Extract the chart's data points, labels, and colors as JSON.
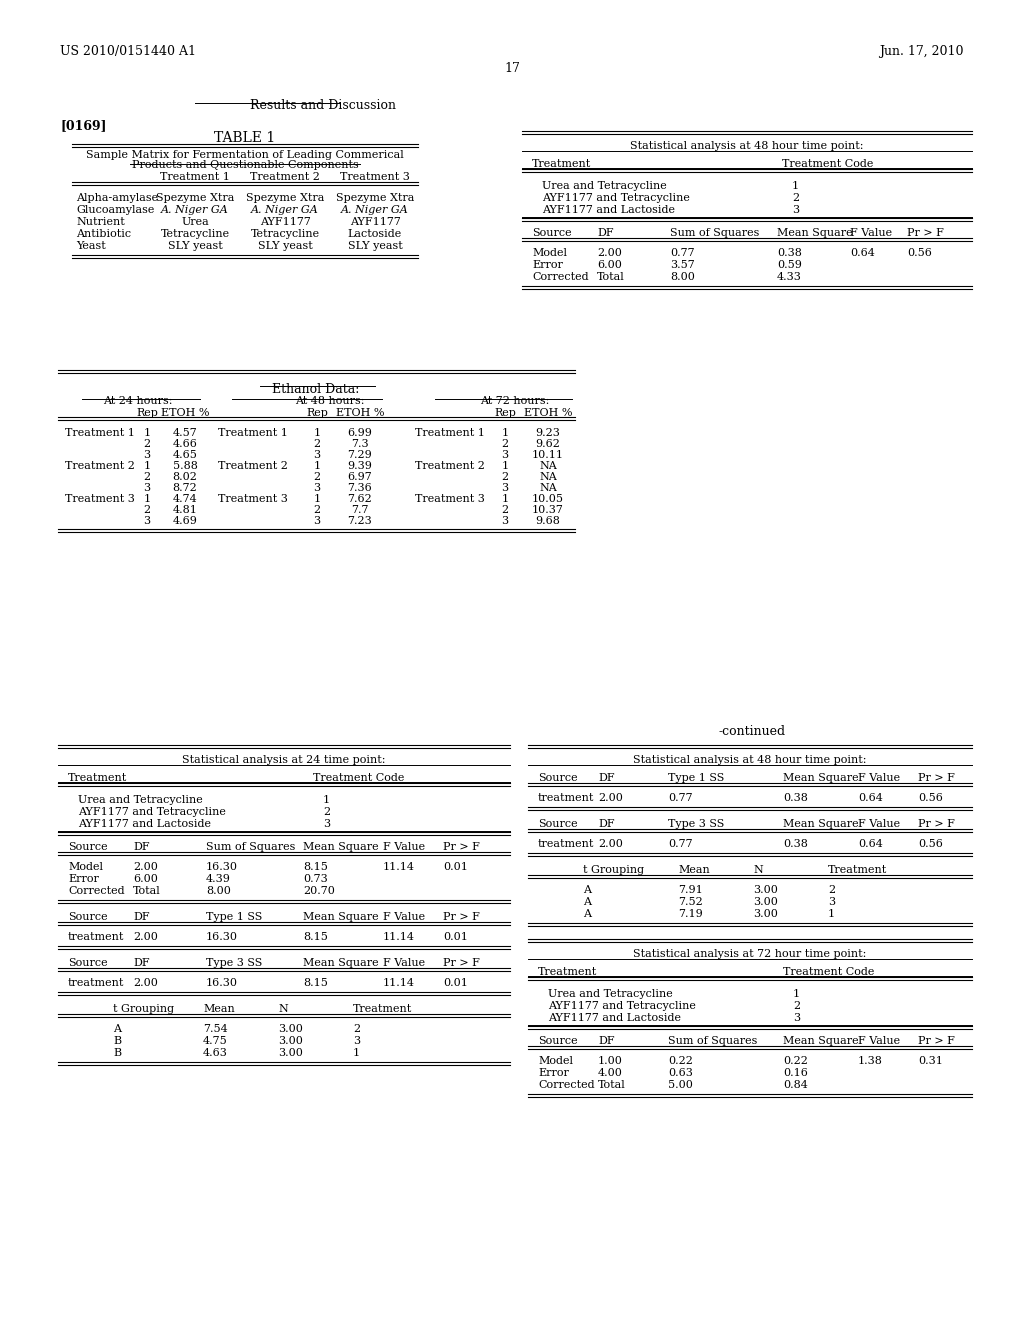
{
  "bg_color": "#ffffff",
  "header_left": "US 2010/0151440 A1",
  "header_right": "Jun. 17, 2010",
  "page_num": "17",
  "section_title": "Results and Discussion",
  "paragraph_tag": "[0169]",
  "table1_title": "TABLE 1",
  "table1_rows": [
    [
      "Alpha-amylase",
      "Spezyme Xtra",
      "Spezyme Xtra",
      "Spezyme Xtra"
    ],
    [
      "Glucoamylase",
      "A. Niger GA",
      "A. Niger GA",
      "A. Niger GA"
    ],
    [
      "Nutrient",
      "Urea",
      "AYF1177",
      "AYF1177"
    ],
    [
      "Antibiotic",
      "Tetracycline",
      "Tetracycline",
      "Lactoside"
    ],
    [
      "Yeast",
      "SLY yeast",
      "SLY yeast",
      "SLY yeast"
    ]
  ],
  "stat48_title": "Statistical analysis at 48 hour time point:",
  "stat48_treatments": [
    [
      "Urea and Tetracycline",
      "1"
    ],
    [
      "AYF1177 and Tetracycline",
      "2"
    ],
    [
      "AYF1177 and Lactoside",
      "3"
    ]
  ],
  "stat48_anova_rows": [
    [
      "Model",
      "2.00",
      "0.77",
      "0.38",
      "0.64",
      "0.56"
    ],
    [
      "Error",
      "6.00",
      "3.57",
      "0.59",
      "",
      ""
    ],
    [
      "Corrected",
      "Total",
      "8.00",
      "4.33",
      "",
      ""
    ]
  ],
  "ethanol_data_24h": [
    [
      "Treatment 1",
      "1",
      "4.57"
    ],
    [
      "",
      "2",
      "4.66"
    ],
    [
      "",
      "3",
      "4.65"
    ],
    [
      "Treatment 2",
      "1",
      "5.88"
    ],
    [
      "",
      "2",
      "8.02"
    ],
    [
      "",
      "3",
      "8.72"
    ],
    [
      "Treatment 3",
      "1",
      "4.74"
    ],
    [
      "",
      "2",
      "4.81"
    ],
    [
      "",
      "3",
      "4.69"
    ]
  ],
  "ethanol_data_48h": [
    [
      "Treatment 1",
      "1",
      "6.99"
    ],
    [
      "",
      "2",
      "7.3"
    ],
    [
      "",
      "3",
      "7.29"
    ],
    [
      "Treatment 2",
      "1",
      "9.39"
    ],
    [
      "",
      "2",
      "6.97"
    ],
    [
      "",
      "3",
      "7.36"
    ],
    [
      "Treatment 3",
      "1",
      "7.62"
    ],
    [
      "",
      "2",
      "7.7"
    ],
    [
      "",
      "3",
      "7.23"
    ]
  ],
  "ethanol_data_72h": [
    [
      "Treatment 1",
      "1",
      "9.23"
    ],
    [
      "",
      "2",
      "9.62"
    ],
    [
      "",
      "3",
      "10.11"
    ],
    [
      "Treatment 2",
      "1",
      "NA"
    ],
    [
      "",
      "2",
      "NA"
    ],
    [
      "",
      "3",
      "NA"
    ],
    [
      "Treatment 3",
      "1",
      "10.05"
    ],
    [
      "",
      "2",
      "10.37"
    ],
    [
      "",
      "3",
      "9.68"
    ]
  ],
  "stat24_title": "Statistical analysis at 24 time point:",
  "stat24_treatments": [
    [
      "Urea and Tetracycline",
      "1"
    ],
    [
      "AYF1177 and Tetracycline",
      "2"
    ],
    [
      "AYF1177 and Lactoside",
      "3"
    ]
  ],
  "stat24_anova_rows": [
    [
      "Model",
      "2.00",
      "16.30",
      "8.15",
      "11.14",
      "0.01"
    ],
    [
      "Error",
      "6.00",
      "4.39",
      "0.73",
      "",
      ""
    ],
    [
      "Corrected",
      "Total",
      "8.00",
      "20.70",
      "",
      ""
    ]
  ],
  "stat24_type1_rows": [
    [
      "treatment",
      "2.00",
      "16.30",
      "8.15",
      "11.14",
      "0.01"
    ]
  ],
  "stat24_type3_rows": [
    [
      "treatment",
      "2.00",
      "16.30",
      "8.15",
      "11.14",
      "0.01"
    ]
  ],
  "stat24_tgroup_rows": [
    [
      "A",
      "7.54",
      "3.00",
      "2"
    ],
    [
      "B",
      "4.75",
      "3.00",
      "3"
    ],
    [
      "B",
      "4.63",
      "3.00",
      "1"
    ]
  ],
  "stat48cont_title": "Statistical analysis at 48 hour time point:",
  "stat48cont_type1_rows": [
    [
      "treatment",
      "2.00",
      "0.77",
      "0.38",
      "0.64",
      "0.56"
    ]
  ],
  "stat48cont_type3_rows": [
    [
      "treatment",
      "2.00",
      "0.77",
      "0.38",
      "0.64",
      "0.56"
    ]
  ],
  "stat48cont_tgroup_rows": [
    [
      "A",
      "7.91",
      "3.00",
      "2"
    ],
    [
      "A",
      "7.52",
      "3.00",
      "3"
    ],
    [
      "A",
      "7.19",
      "3.00",
      "1"
    ]
  ],
  "stat72_title": "Statistical analysis at 72 hour time point:",
  "stat72_treatments": [
    [
      "Urea and Tetracycline",
      "1"
    ],
    [
      "AYF1177 and Tetracycline",
      "2"
    ],
    [
      "AYF1177 and Lactoside",
      "3"
    ]
  ],
  "stat72_anova_rows": [
    [
      "Model",
      "1.00",
      "0.22",
      "0.22",
      "1.38",
      "0.31"
    ],
    [
      "Error",
      "4.00",
      "0.63",
      "0.16",
      "",
      ""
    ],
    [
      "Corrected",
      "Total",
      "5.00",
      "0.84",
      "",
      ""
    ]
  ]
}
